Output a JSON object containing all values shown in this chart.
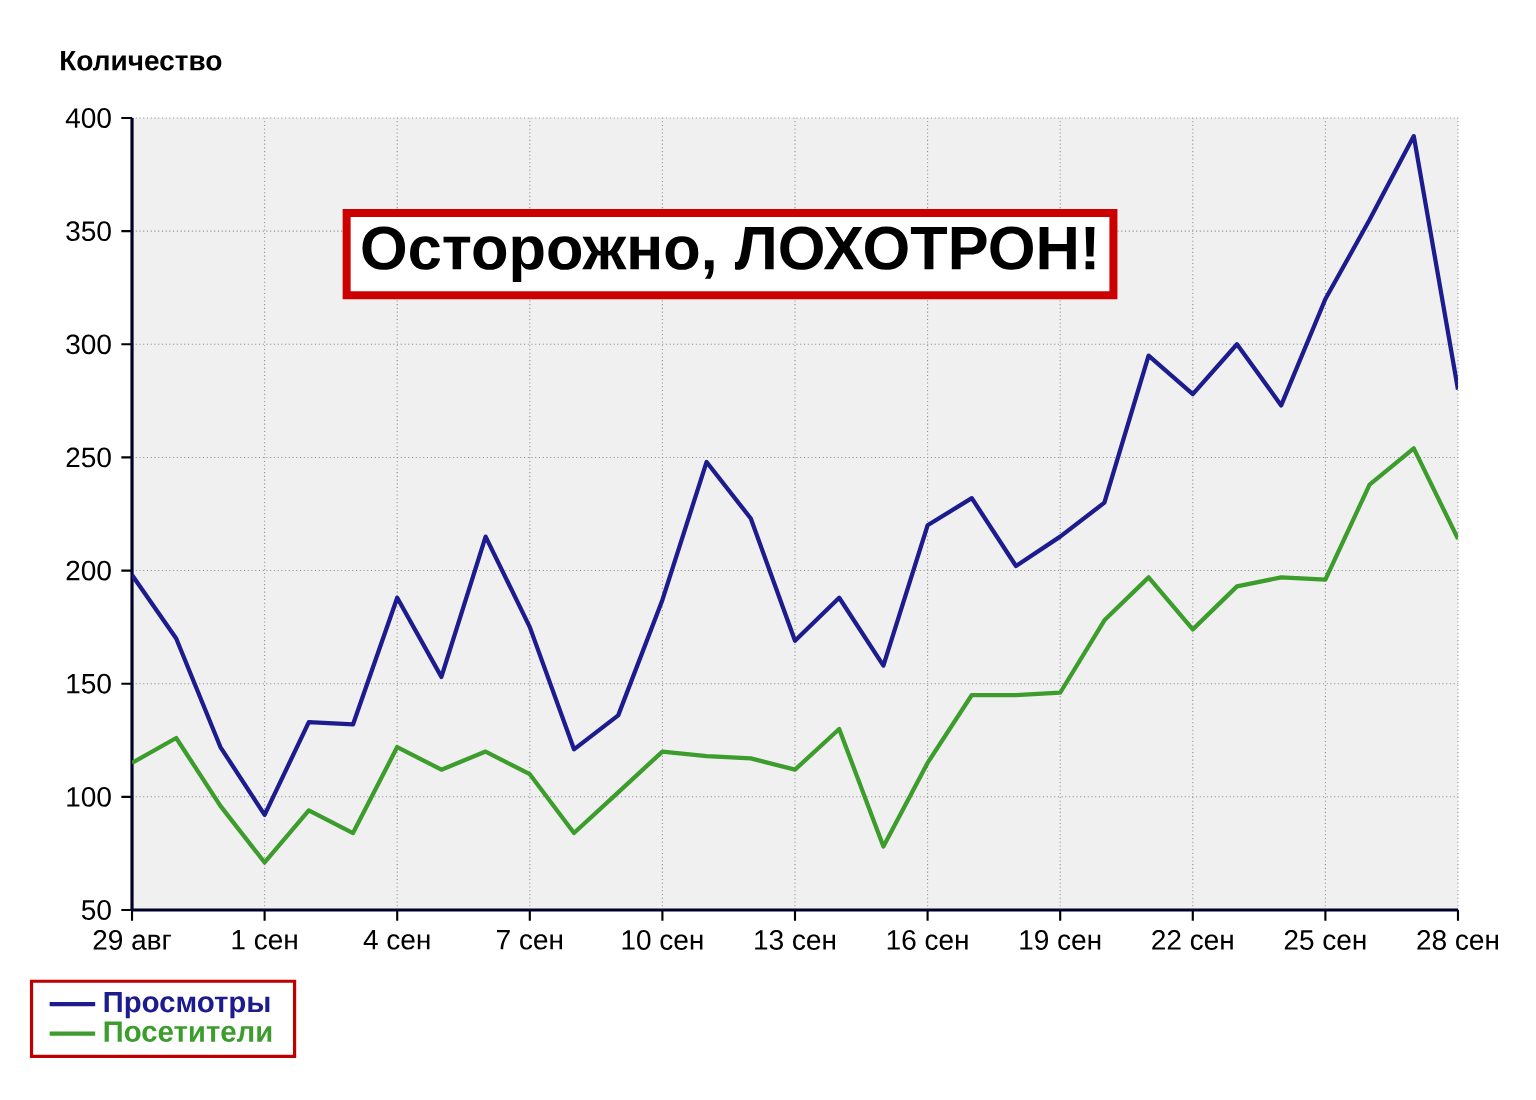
{
  "chart_data": {
    "type": "line",
    "ylabel": "Количество",
    "annotations": [
      "Осторожно, ЛОХОТРОН!"
    ],
    "categories": [
      "29 авг",
      null,
      null,
      "1 сен",
      null,
      null,
      "4 сен",
      null,
      null,
      "7 сен",
      null,
      null,
      "10 сен",
      null,
      null,
      "13 сен",
      null,
      null,
      "16 сен",
      null,
      null,
      "19 сен",
      null,
      null,
      "22 сен",
      null,
      null,
      "25 сен",
      null,
      null,
      "28 сен"
    ],
    "series": [
      {
        "name": "Просмотры",
        "color": "#1c1c8e",
        "values": [
          198,
          170,
          122,
          92,
          133,
          132,
          188,
          153,
          215,
          175,
          121,
          136,
          187,
          248,
          223,
          169,
          188,
          158,
          220,
          232,
          202,
          215,
          230,
          295,
          278,
          300,
          273,
          320,
          355,
          392,
          280
        ]
      },
      {
        "name": "Посетители",
        "color": "#3c9c2c",
        "values": [
          115,
          126,
          96,
          71,
          94,
          84,
          122,
          112,
          120,
          110,
          84,
          102,
          120,
          118,
          117,
          112,
          130,
          78,
          115,
          145,
          145,
          146,
          178,
          197,
          174,
          193,
          197,
          196,
          238,
          254,
          214
        ]
      }
    ],
    "ylim": [
      50,
      400
    ],
    "yticks": [
      50,
      100,
      150,
      200,
      250,
      300,
      350,
      400
    ],
    "grid": true,
    "legend": "bottom left",
    "marker": "none",
    "line_style": "solid"
  }
}
